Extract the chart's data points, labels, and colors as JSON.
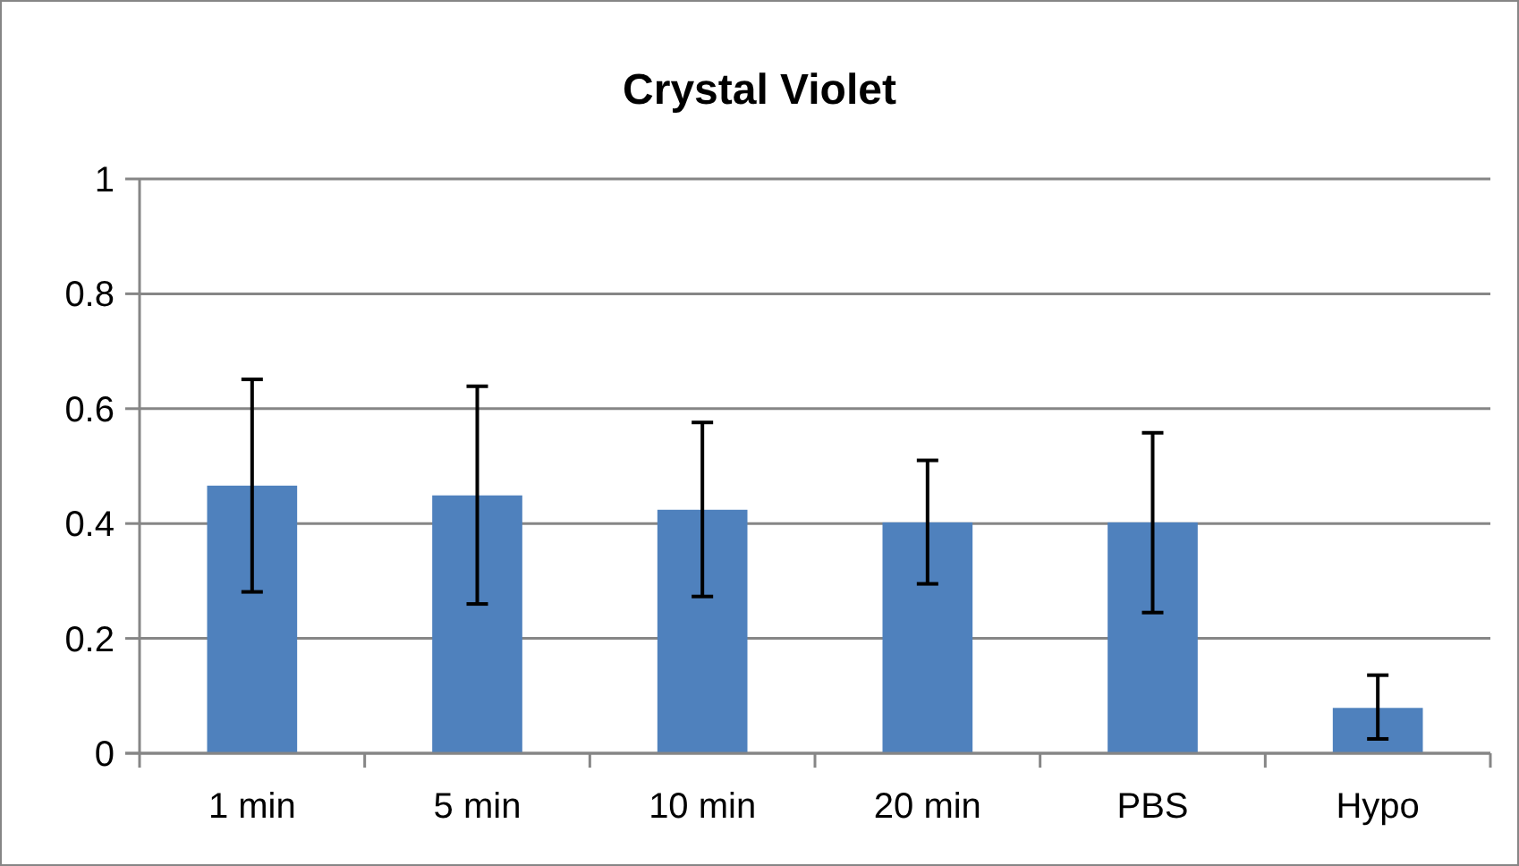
{
  "chart_data": {
    "type": "bar",
    "title": "Crystal Violet",
    "categories": [
      "1 min",
      "5 min",
      "10 min",
      "20 min",
      "PBS",
      "Hypo"
    ],
    "values": [
      0.466,
      0.449,
      0.424,
      0.402,
      0.402,
      0.079
    ],
    "errors": [
      [
        0.281,
        0.651
      ],
      [
        0.26,
        0.639
      ],
      [
        0.273,
        0.576
      ],
      [
        0.295,
        0.51
      ],
      [
        0.245,
        0.558
      ],
      [
        0.025,
        0.136
      ]
    ],
    "color": "#4f81bd",
    "ylim": [
      0,
      1
    ],
    "yticks": [
      0,
      0.2,
      0.4,
      0.6,
      0.8,
      1
    ],
    "grid": "y"
  }
}
